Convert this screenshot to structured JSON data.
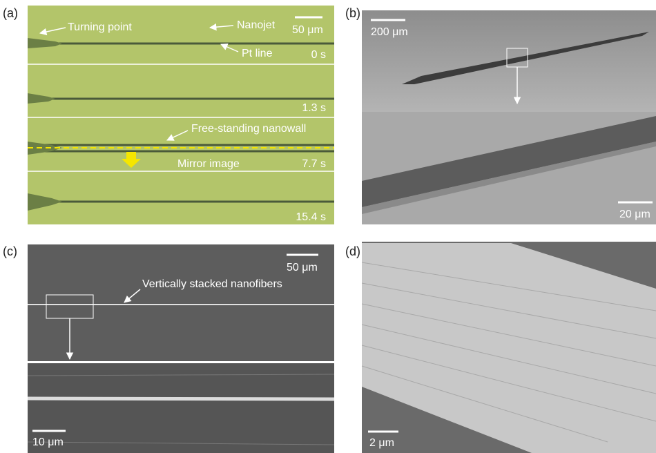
{
  "panels": [
    {
      "label": "(a)",
      "scale_bar": "50 μm",
      "annotations": [
        "Turning point",
        "Nanojet",
        "Pt line",
        "Free-standing nanowall",
        "Mirror image"
      ],
      "times": [
        "0 s",
        "1.3 s",
        "7.7 s",
        "15.4 s"
      ]
    },
    {
      "label": "(b)",
      "scale_bars": [
        "200 μm",
        "20 μm"
      ]
    },
    {
      "label": "(c)",
      "scale_bars": [
        "50 μm",
        "10 μm"
      ],
      "annotations": [
        "Vertically stacked nanofibers"
      ]
    },
    {
      "label": "(d)",
      "scale_bar": "2 μm"
    }
  ]
}
